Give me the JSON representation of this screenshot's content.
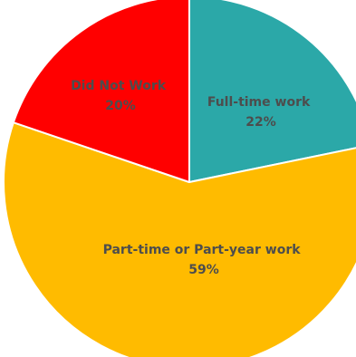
{
  "chart_data": {
    "type": "pie",
    "slices": [
      {
        "label": "Full-time work",
        "value_label": "22%",
        "value": 22,
        "color": "#2ba8a8"
      },
      {
        "label": "Part-time or Part-year work",
        "value_label": "59%",
        "value": 59,
        "color": "#ffbb00"
      },
      {
        "label": "Did Not Work",
        "value_label": "20%",
        "value": 20,
        "color": "#ff0000"
      }
    ],
    "start": "12 o'clock",
    "direction": "clockwise",
    "slice_border_color": "#ffffff"
  }
}
